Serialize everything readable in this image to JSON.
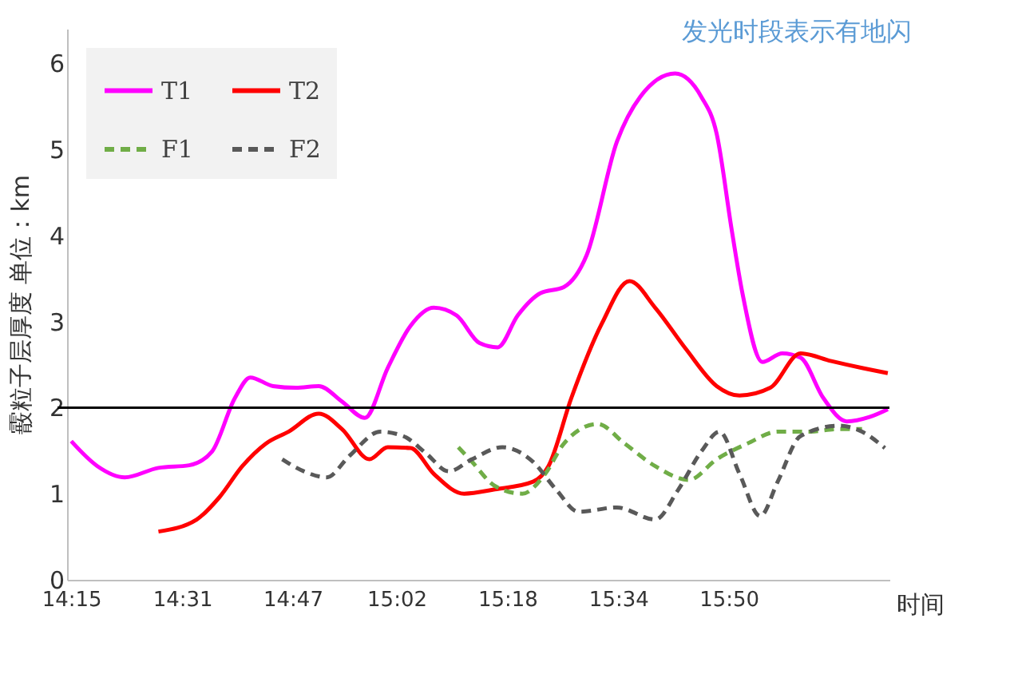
{
  "chart_data": {
    "type": "line",
    "xlabel": "时间",
    "ylabel": "霰粒子层厚度 单位：km",
    "annotations": [
      "发光时段表示有地闪"
    ],
    "xlim": [
      14.24,
      16.22
    ],
    "ylim": [
      0,
      6.4
    ],
    "yticks": [
      0,
      1,
      2,
      3,
      4,
      5,
      6
    ],
    "xticks": [
      {
        "value": 14.25,
        "label": "14:15"
      },
      {
        "value": 14.517,
        "label": "14:31"
      },
      {
        "value": 14.783,
        "label": "14:47"
      },
      {
        "value": 15.033,
        "label": "15:02"
      },
      {
        "value": 15.3,
        "label": "15:18"
      },
      {
        "value": 15.567,
        "label": "15:34"
      },
      {
        "value": 15.833,
        "label": "15:50"
      }
    ],
    "grid": false,
    "legend": "top left",
    "marker": "none",
    "ref_lines": [
      {
        "axis": "y",
        "value": 2,
        "color": "#000000",
        "line_style": "solid"
      }
    ],
    "series": [
      {
        "name": "T1",
        "color": "#ff00ff",
        "line_style": "solid",
        "x": [
          14.25,
          14.313,
          14.379,
          14.46,
          14.534,
          14.589,
          14.644,
          14.681,
          14.736,
          14.791,
          14.846,
          14.902,
          14.957,
          15.012,
          15.067,
          15.123,
          15.178,
          15.233,
          15.277,
          15.325,
          15.38,
          15.436,
          15.491,
          15.564,
          15.62,
          15.704,
          15.767,
          15.804,
          15.841,
          15.866,
          15.914,
          15.962,
          16.006,
          16.061,
          16.117,
          16.172,
          16.216
        ],
        "values": [
          1.61,
          1.32,
          1.19,
          1.3,
          1.33,
          1.49,
          2.11,
          2.35,
          2.25,
          2.23,
          2.25,
          2.07,
          1.88,
          2.46,
          2.95,
          3.16,
          3.07,
          2.75,
          2.7,
          3.07,
          3.33,
          3.4,
          3.77,
          5.09,
          5.61,
          5.88,
          5.61,
          5.18,
          4.04,
          3.33,
          2.53,
          2.63,
          2.58,
          2.11,
          1.84,
          1.89,
          1.98
        ]
      },
      {
        "name": "T2",
        "color": "#ff0000",
        "line_style": "solid",
        "x": [
          14.46,
          14.552,
          14.607,
          14.662,
          14.718,
          14.773,
          14.846,
          14.902,
          14.968,
          15.012,
          15.067,
          15.123,
          15.196,
          15.27,
          15.362,
          15.399,
          15.454,
          15.528,
          15.594,
          15.656,
          15.73,
          15.804,
          15.859,
          15.933,
          16.006,
          16.08,
          16.154,
          16.216
        ],
        "values": [
          0.56,
          0.7,
          0.96,
          1.32,
          1.58,
          1.72,
          1.93,
          1.75,
          1.4,
          1.54,
          1.53,
          1.23,
          1.0,
          1.05,
          1.14,
          1.32,
          2.11,
          2.98,
          3.47,
          3.16,
          2.68,
          2.25,
          2.14,
          2.23,
          2.63,
          2.54,
          2.46,
          2.4
        ]
      },
      {
        "name": "F1",
        "color": "#70ad47",
        "line_style": "dashed",
        "x": [
          15.182,
          15.215,
          15.27,
          15.336,
          15.391,
          15.436,
          15.517,
          15.583,
          15.656,
          15.737,
          15.804,
          15.877,
          15.951,
          16.025,
          16.098,
          16.154
        ],
        "values": [
          1.54,
          1.37,
          1.09,
          1.0,
          1.23,
          1.58,
          1.81,
          1.58,
          1.32,
          1.16,
          1.4,
          1.58,
          1.72,
          1.72,
          1.75,
          1.75
        ]
      },
      {
        "name": "F2",
        "color": "#595959",
        "line_style": "dashed",
        "x": [
          14.758,
          14.81,
          14.865,
          14.92,
          14.994,
          15.049,
          15.104,
          15.159,
          15.215,
          15.288,
          15.362,
          15.417,
          15.472,
          15.564,
          15.656,
          15.712,
          15.767,
          15.811,
          15.859,
          15.909,
          15.951,
          16.006,
          16.098,
          16.154,
          16.209
        ],
        "values": [
          1.4,
          1.26,
          1.19,
          1.44,
          1.72,
          1.67,
          1.47,
          1.26,
          1.4,
          1.54,
          1.37,
          1.05,
          0.79,
          0.84,
          0.7,
          1.05,
          1.49,
          1.72,
          1.23,
          0.74,
          1.14,
          1.67,
          1.79,
          1.72,
          1.53
        ]
      }
    ]
  }
}
